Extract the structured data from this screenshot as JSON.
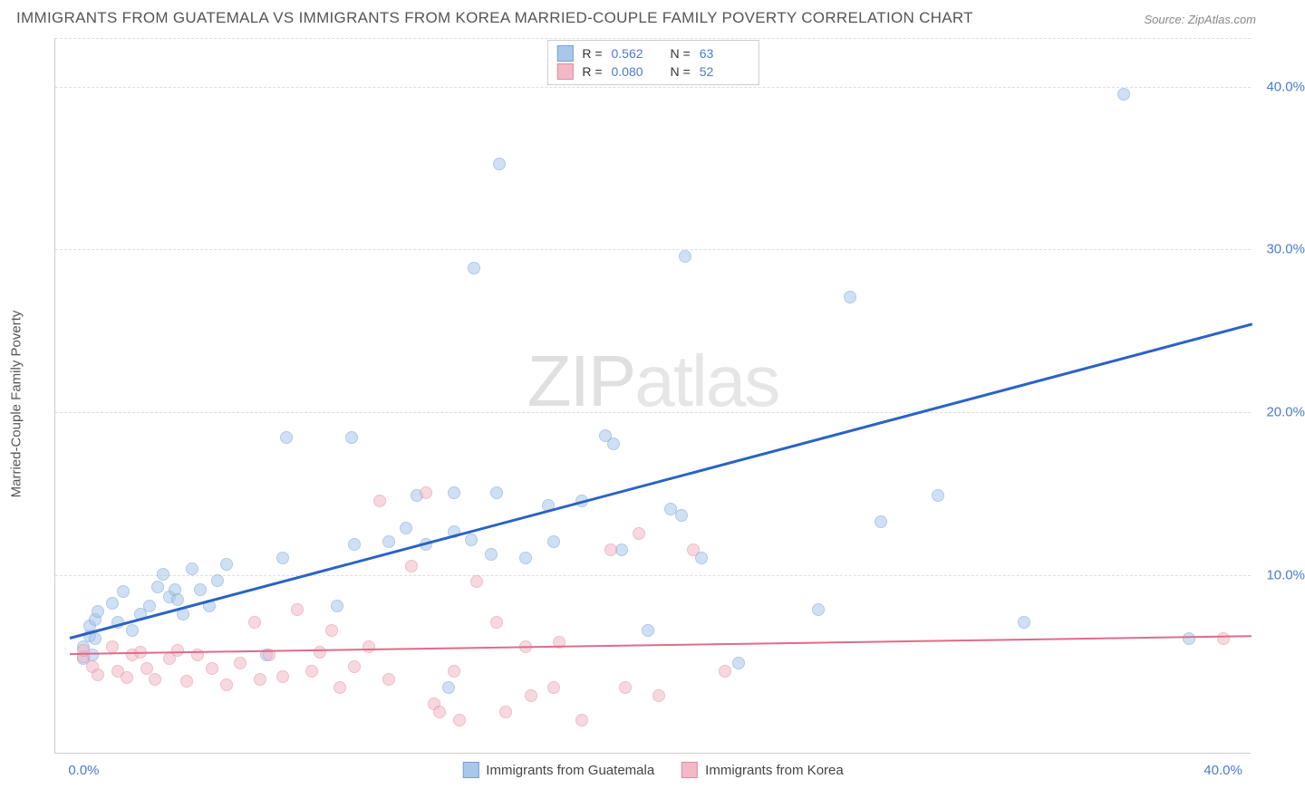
{
  "title": "IMMIGRANTS FROM GUATEMALA VS IMMIGRANTS FROM KOREA MARRIED-COUPLE FAMILY POVERTY CORRELATION CHART",
  "source": "Source: ZipAtlas.com",
  "watermark": {
    "part1": "ZIP",
    "part2": "atlas"
  },
  "y_axis_label": "Married-Couple Family Poverty",
  "chart": {
    "type": "scatter",
    "xlim": [
      -1,
      41
    ],
    "ylim": [
      -1,
      43
    ],
    "x_ticks": [
      {
        "v": 0,
        "label": "0.0%"
      },
      {
        "v": 40,
        "label": "40.0%"
      }
    ],
    "y_ticks": [
      {
        "v": 10,
        "label": "10.0%"
      },
      {
        "v": 20,
        "label": "20.0%"
      },
      {
        "v": 30,
        "label": "30.0%"
      },
      {
        "v": 40,
        "label": "40.0%"
      }
    ],
    "grid_lines_h": [
      10,
      20,
      30,
      40,
      43
    ],
    "background_color": "#ffffff",
    "grid_color": "#dddddd",
    "axis_color": "#cccccc",
    "tick_font_color": "#4a7bd0",
    "label_font_color": "#555555",
    "title_font_color": "#555555",
    "title_fontsize": 17,
    "label_fontsize": 15,
    "tick_fontsize": 15,
    "marker_size": 14,
    "marker_opacity": 0.55
  },
  "series": [
    {
      "name": "Immigrants from Guatemala",
      "R": "0.562",
      "N": "63",
      "marker_fill": "#a9c7ea",
      "marker_stroke": "#6f9fd8",
      "line_color": "#2a63c4",
      "line_width": 2.5,
      "trend": {
        "x1": -0.5,
        "y1": 6.2,
        "x2": 41,
        "y2": 25.5
      },
      "points": [
        [
          0.0,
          4.8
        ],
        [
          0.0,
          5.5
        ],
        [
          0.2,
          6.2
        ],
        [
          0.2,
          6.8
        ],
        [
          0.3,
          5.0
        ],
        [
          0.4,
          7.2
        ],
        [
          0.4,
          6.0
        ],
        [
          0.5,
          7.7
        ],
        [
          1.0,
          8.2
        ],
        [
          1.2,
          7.0
        ],
        [
          1.4,
          8.9
        ],
        [
          1.7,
          6.5
        ],
        [
          2.0,
          7.5
        ],
        [
          2.3,
          8.0
        ],
        [
          2.6,
          9.2
        ],
        [
          2.8,
          10.0
        ],
        [
          3.0,
          8.6
        ],
        [
          3.2,
          9.0
        ],
        [
          3.3,
          8.4
        ],
        [
          3.5,
          7.5
        ],
        [
          3.8,
          10.3
        ],
        [
          4.1,
          9.0
        ],
        [
          4.4,
          8.0
        ],
        [
          4.7,
          9.6
        ],
        [
          5.0,
          10.6
        ],
        [
          6.4,
          5.0
        ],
        [
          7.0,
          11.0
        ],
        [
          7.1,
          18.4
        ],
        [
          8.9,
          8.0
        ],
        [
          9.4,
          18.4
        ],
        [
          9.5,
          11.8
        ],
        [
          10.7,
          12.0
        ],
        [
          11.3,
          12.8
        ],
        [
          11.7,
          14.8
        ],
        [
          12.0,
          11.8
        ],
        [
          12.8,
          3.0
        ],
        [
          13.0,
          12.6
        ],
        [
          13.0,
          15.0
        ],
        [
          13.6,
          12.1
        ],
        [
          13.7,
          28.8
        ],
        [
          14.3,
          11.2
        ],
        [
          14.5,
          15.0
        ],
        [
          14.6,
          35.2
        ],
        [
          15.5,
          11.0
        ],
        [
          16.3,
          14.2
        ],
        [
          16.5,
          12.0
        ],
        [
          17.5,
          14.5
        ],
        [
          18.3,
          18.5
        ],
        [
          18.6,
          18.0
        ],
        [
          18.9,
          11.5
        ],
        [
          19.8,
          6.5
        ],
        [
          20.6,
          14.0
        ],
        [
          21.0,
          13.6
        ],
        [
          21.1,
          29.5
        ],
        [
          21.7,
          11.0
        ],
        [
          23.0,
          4.5
        ],
        [
          25.8,
          7.8
        ],
        [
          26.9,
          27.0
        ],
        [
          28.0,
          13.2
        ],
        [
          30.0,
          14.8
        ],
        [
          33.0,
          7.0
        ],
        [
          36.5,
          39.5
        ],
        [
          38.8,
          6.0
        ]
      ]
    },
    {
      "name": "Immigrants from Korea",
      "R": "0.080",
      "N": "52",
      "marker_fill": "#f3b9c6",
      "marker_stroke": "#e38aa0",
      "line_color": "#e06b8a",
      "line_width": 2,
      "trend": {
        "x1": -0.5,
        "y1": 5.2,
        "x2": 41,
        "y2": 6.3
      },
      "points": [
        [
          0.0,
          4.9
        ],
        [
          0.0,
          5.3
        ],
        [
          0.3,
          4.3
        ],
        [
          0.5,
          3.8
        ],
        [
          1.0,
          5.5
        ],
        [
          1.2,
          4.0
        ],
        [
          1.5,
          3.6
        ],
        [
          1.7,
          5.0
        ],
        [
          2.0,
          5.2
        ],
        [
          2.2,
          4.2
        ],
        [
          2.5,
          3.5
        ],
        [
          3.0,
          4.8
        ],
        [
          3.3,
          5.3
        ],
        [
          3.6,
          3.4
        ],
        [
          4.0,
          5.0
        ],
        [
          4.5,
          4.2
        ],
        [
          5.0,
          3.2
        ],
        [
          5.5,
          4.5
        ],
        [
          6.0,
          7.0
        ],
        [
          6.2,
          3.5
        ],
        [
          6.5,
          5.0
        ],
        [
          7.0,
          3.7
        ],
        [
          7.5,
          7.8
        ],
        [
          8.0,
          4.0
        ],
        [
          8.3,
          5.2
        ],
        [
          8.7,
          6.5
        ],
        [
          9.0,
          3.0
        ],
        [
          9.5,
          4.3
        ],
        [
          10.0,
          5.5
        ],
        [
          10.4,
          14.5
        ],
        [
          10.7,
          3.5
        ],
        [
          11.5,
          10.5
        ],
        [
          12.0,
          15.0
        ],
        [
          12.3,
          2.0
        ],
        [
          12.5,
          1.5
        ],
        [
          13.0,
          4.0
        ],
        [
          13.2,
          1.0
        ],
        [
          13.8,
          9.5
        ],
        [
          14.5,
          7.0
        ],
        [
          14.8,
          1.5
        ],
        [
          15.5,
          5.5
        ],
        [
          15.7,
          2.5
        ],
        [
          16.5,
          3.0
        ],
        [
          16.7,
          5.8
        ],
        [
          17.5,
          1.0
        ],
        [
          18.5,
          11.5
        ],
        [
          19.0,
          3.0
        ],
        [
          19.5,
          12.5
        ],
        [
          20.2,
          2.5
        ],
        [
          21.4,
          11.5
        ],
        [
          22.5,
          4.0
        ],
        [
          40.0,
          6.0
        ]
      ]
    }
  ],
  "legend_top": {
    "r_label": "R  =",
    "n_label": "N  ="
  },
  "legend_bottom": {
    "items": [
      "Immigrants from Guatemala",
      "Immigrants from Korea"
    ]
  }
}
